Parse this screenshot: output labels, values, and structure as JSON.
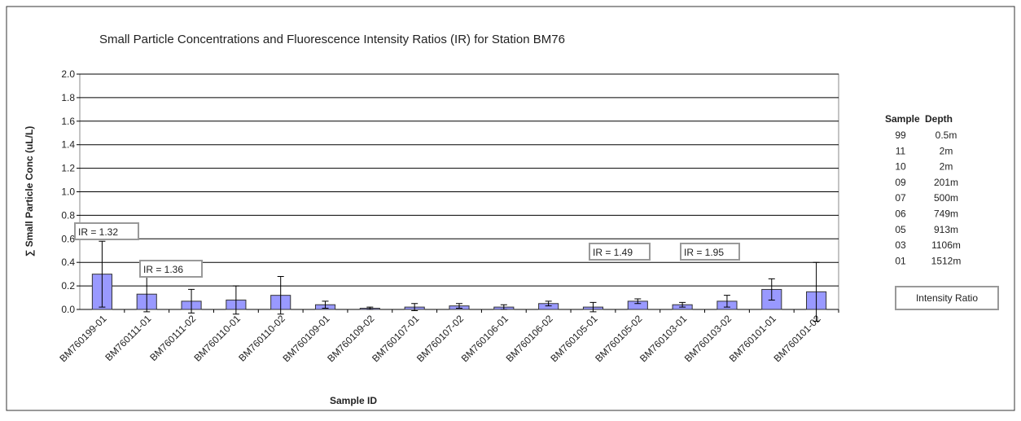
{
  "chart_data": {
    "type": "bar",
    "title": "Small Particle Concentrations and Fluorescence Intensity Ratios (IR) for Station BM76",
    "x_label": "Sample ID",
    "y_label": "∑ Small Particle Conc  (uL/L)",
    "categories": [
      "BM760199-01",
      "BM760111-01",
      "BM760111-02",
      "BM760110-01",
      "BM760110-02",
      "BM760109-01",
      "BM760109-02",
      "BM760107-01",
      "BM760107-02",
      "BM760106-01",
      "BM760106-02",
      "BM760105-01",
      "BM760105-02",
      "BM760103-01",
      "BM760103-02",
      "BM760101-01",
      "BM760101-02"
    ],
    "values": [
      0.3,
      0.13,
      0.07,
      0.08,
      0.12,
      0.04,
      0.01,
      0.02,
      0.03,
      0.02,
      0.05,
      0.02,
      0.07,
      0.04,
      0.07,
      0.17,
      0.15
    ],
    "errors": [
      0.28,
      0.15,
      0.1,
      0.12,
      0.16,
      0.03,
      0.01,
      0.03,
      0.02,
      0.02,
      0.02,
      0.04,
      0.02,
      0.02,
      0.05,
      0.09,
      0.25
    ],
    "color": "#9999ff",
    "ylim": [
      0,
      2
    ],
    "yticks": [
      {
        "value": 0,
        "label": "0.0"
      },
      0.2,
      0.4,
      0.6,
      0.8,
      {
        "value": 1,
        "label": "1.0"
      },
      1.2,
      1.4,
      1.6,
      1.8,
      {
        "value": 2,
        "label": "2.0"
      }
    ],
    "grid": true,
    "annotations": [
      "IR = 1.32",
      "IR = 1.36",
      "IR = 1.49",
      "IR = 1.95"
    ],
    "depth_table": {
      "headers": [
        "Sample",
        "Depth"
      ],
      "rows": [
        [
          "99",
          "0.5m"
        ],
        [
          "11",
          "2m"
        ],
        [
          "10",
          "2m"
        ],
        [
          "09",
          "201m"
        ],
        [
          "07",
          "500m"
        ],
        [
          "06",
          "749m"
        ],
        [
          "05",
          "913m"
        ],
        [
          "03",
          "1106m"
        ],
        [
          "01",
          "1512m"
        ]
      ]
    },
    "legend_box": "Intensity Ratio"
  }
}
